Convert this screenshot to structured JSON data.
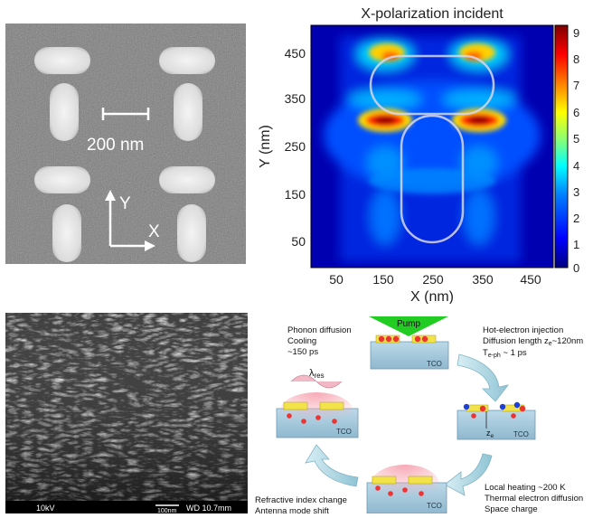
{
  "sem_top": {
    "scale_label": "200 nm",
    "axis_x": "X",
    "axis_y": "Y"
  },
  "field_map": {
    "title": "X-polarization incident",
    "xlabel": "X (nm)",
    "ylabel": "Y (nm)",
    "x_ticks": [
      "50",
      "150",
      "250",
      "350",
      "450"
    ],
    "y_ticks": [
      "50",
      "150",
      "250",
      "350",
      "450"
    ],
    "colorbar_ticks": [
      "0",
      "1",
      "2",
      "3",
      "4",
      "5",
      "6",
      "7",
      "8",
      "9"
    ],
    "colormap": [
      "#00007f",
      "#0000ff",
      "#007fff",
      "#00ffff",
      "#7fff7f",
      "#ffff00",
      "#ff7f00",
      "#ff0000",
      "#7f0000"
    ]
  },
  "sem_bottom": {
    "voltage": "10kV",
    "scale": "100nm",
    "wd": "WD 10.7mm"
  },
  "cycle": {
    "pump": "Pump",
    "tco": "TCO",
    "lambda": "λ",
    "lambda_sub": "res",
    "ze": "z",
    "ze_sub": "e",
    "minus": "−",
    "plus": "+",
    "phonon": [
      "Phonon diffusion",
      "Cooling",
      "~150 ps"
    ],
    "hot_electron_l1": "Hot-electron injection",
    "hot_electron_l2_pre": "Diffusion length z",
    "hot_electron_l2_sub": "e",
    "hot_electron_l2_post": "~120nm",
    "hot_electron_l3_pre": "T",
    "hot_electron_l3_sub": "e-ph",
    "hot_electron_l3_post": " ~ 1 ps",
    "local_heating": [
      "Local heating ~200 K",
      "Thermal electron diffusion",
      "Space charge"
    ],
    "refractive": [
      "Refractive index change",
      "Antenna mode shift"
    ]
  }
}
